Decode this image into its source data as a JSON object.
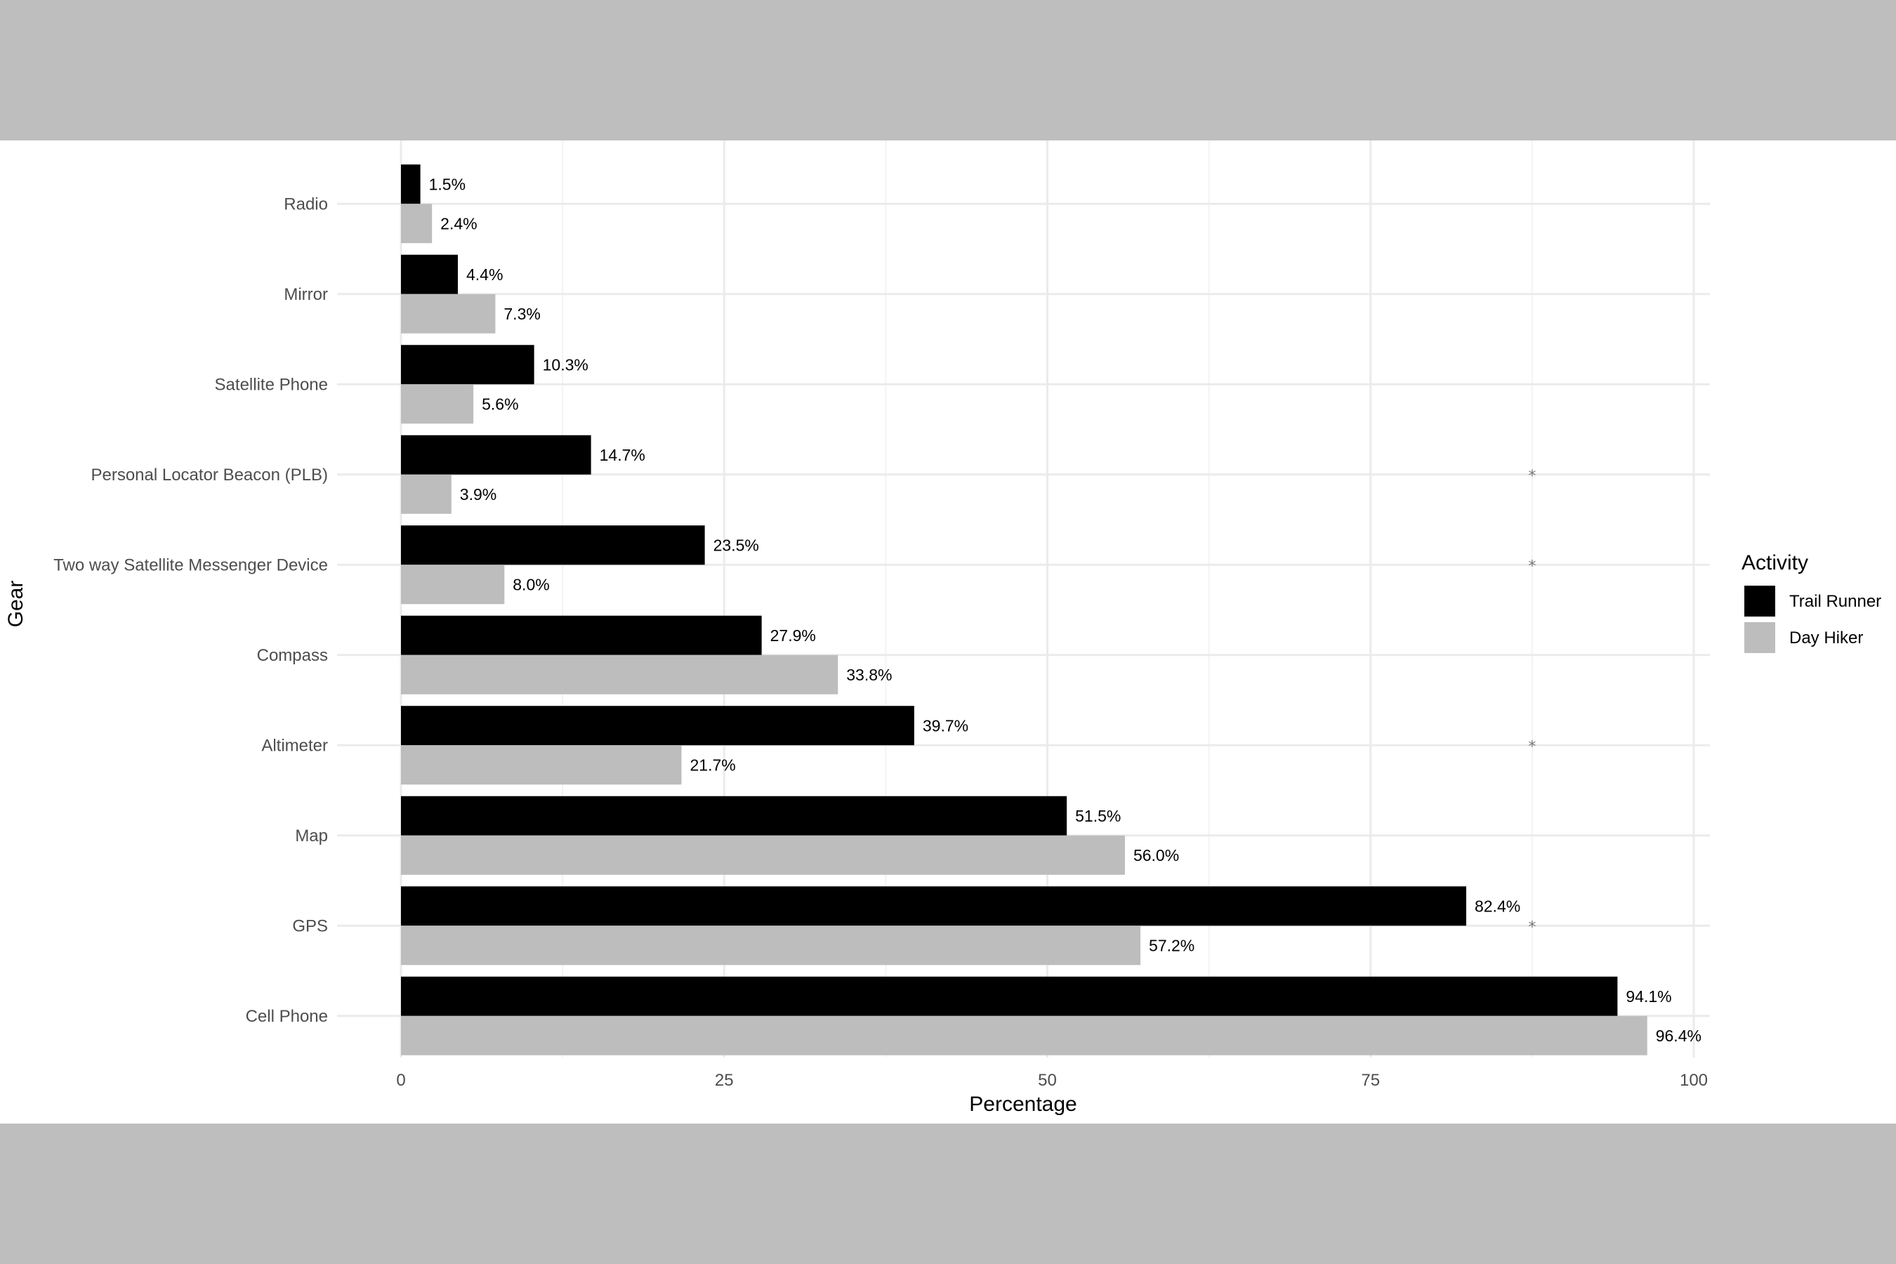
{
  "chart_data": {
    "type": "bar",
    "orientation": "horizontal",
    "categories": [
      "Radio",
      "Mirror",
      "Satellite Phone",
      "Personal Locator Beacon (PLB)",
      "Two way Satellite Messenger Device",
      "Compass",
      "Altimeter",
      "Map",
      "GPS",
      "Cell Phone"
    ],
    "series": [
      {
        "name": "Trail Runner",
        "color": "#000000",
        "values": [
          1.5,
          4.4,
          10.3,
          14.7,
          23.5,
          27.9,
          39.7,
          51.5,
          82.4,
          94.1
        ],
        "labels": [
          "1.5%",
          "4.4%",
          "10.3%",
          "14.7%",
          "23.5%",
          "27.9%",
          "39.7%",
          "51.5%",
          "82.4%",
          "94.1%"
        ]
      },
      {
        "name": "Day Hiker",
        "color": "#bdbdbd",
        "values": [
          2.4,
          7.3,
          5.6,
          3.9,
          8.0,
          33.8,
          21.7,
          56.0,
          57.2,
          96.4
        ],
        "labels": [
          "2.4%",
          "7.3%",
          "5.6%",
          "3.9%",
          "8.0%",
          "33.8%",
          "21.7%",
          "56.0%",
          "57.2%",
          "96.4%"
        ]
      }
    ],
    "significance_markers": [
      "Personal Locator Beacon (PLB)",
      "Two way Satellite Messenger Device",
      "Altimeter",
      "GPS"
    ],
    "significance_symbol": "*",
    "significance_x": 87.5,
    "xlabel": "Percentage",
    "ylabel": "Gear",
    "xlim": [
      0,
      100
    ],
    "xticks": [
      0,
      25,
      50,
      75,
      100
    ],
    "grid": true,
    "legend": {
      "title": "Activity",
      "position": "right"
    }
  }
}
